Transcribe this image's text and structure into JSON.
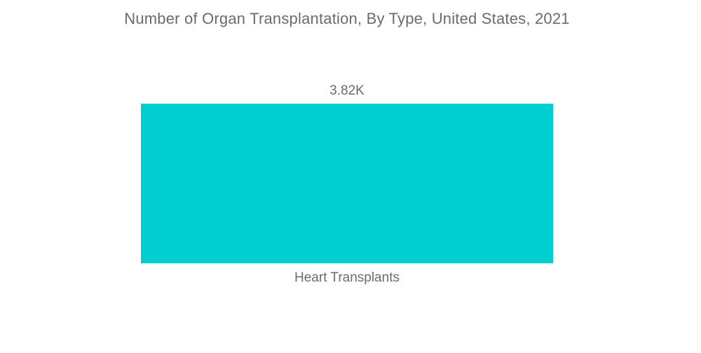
{
  "chart_data": {
    "type": "bar",
    "title": "Number of Organ Transplantation, By Type, United States, 2021",
    "categories": [
      "Heart Transplants"
    ],
    "values": [
      3820
    ],
    "value_labels": [
      "3.82K"
    ],
    "series": [
      {
        "name": "Heart Transplants",
        "values": [
          3820
        ]
      }
    ],
    "xlabel": "",
    "ylabel": "",
    "ylim": [
      0,
      3820
    ],
    "orientation": "vertical",
    "grid": false,
    "legend": false,
    "axes_visible": false,
    "bar_color": "#00CED1",
    "text_color": "#6b6b6b",
    "background_color": "#ffffff"
  }
}
